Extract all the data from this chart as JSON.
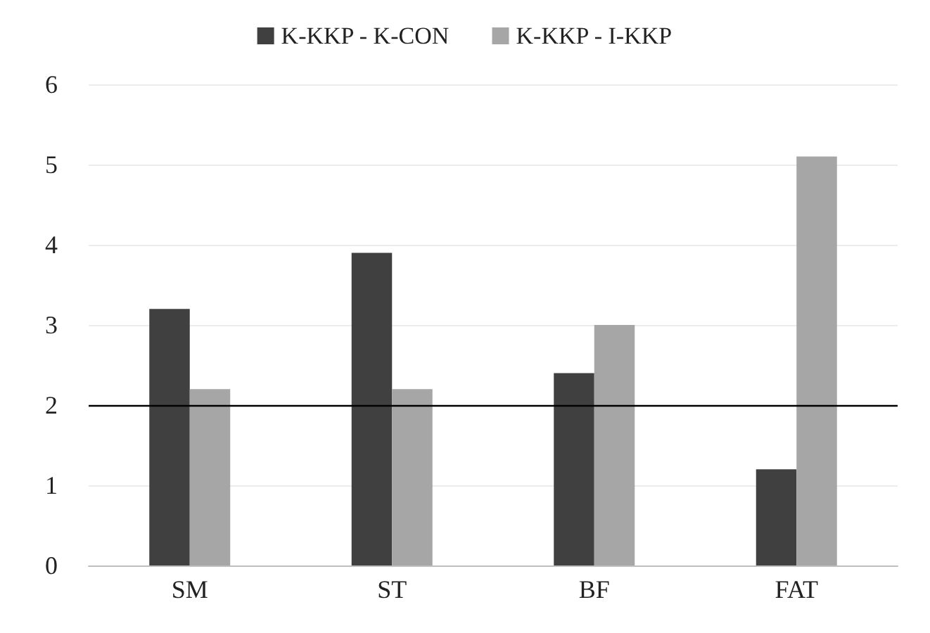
{
  "chart_data": {
    "type": "bar",
    "categories": [
      "SM",
      "ST",
      "BF",
      "FAT"
    ],
    "series": [
      {
        "name": "K-KKP - K-CON",
        "color": "#404040",
        "values": [
          3.2,
          3.9,
          2.4,
          1.2
        ]
      },
      {
        "name": "K-KKP - I-KKP",
        "color": "#a6a6a6",
        "values": [
          2.2,
          2.2,
          3.0,
          5.1
        ]
      }
    ],
    "ylim": [
      0,
      6
    ],
    "yticks": [
      0,
      1,
      2,
      3,
      4,
      5,
      6
    ],
    "grid": "y",
    "legend": "top",
    "ref_lines": [
      {
        "axis": "y",
        "value": 2,
        "color": "#000000"
      }
    ]
  }
}
